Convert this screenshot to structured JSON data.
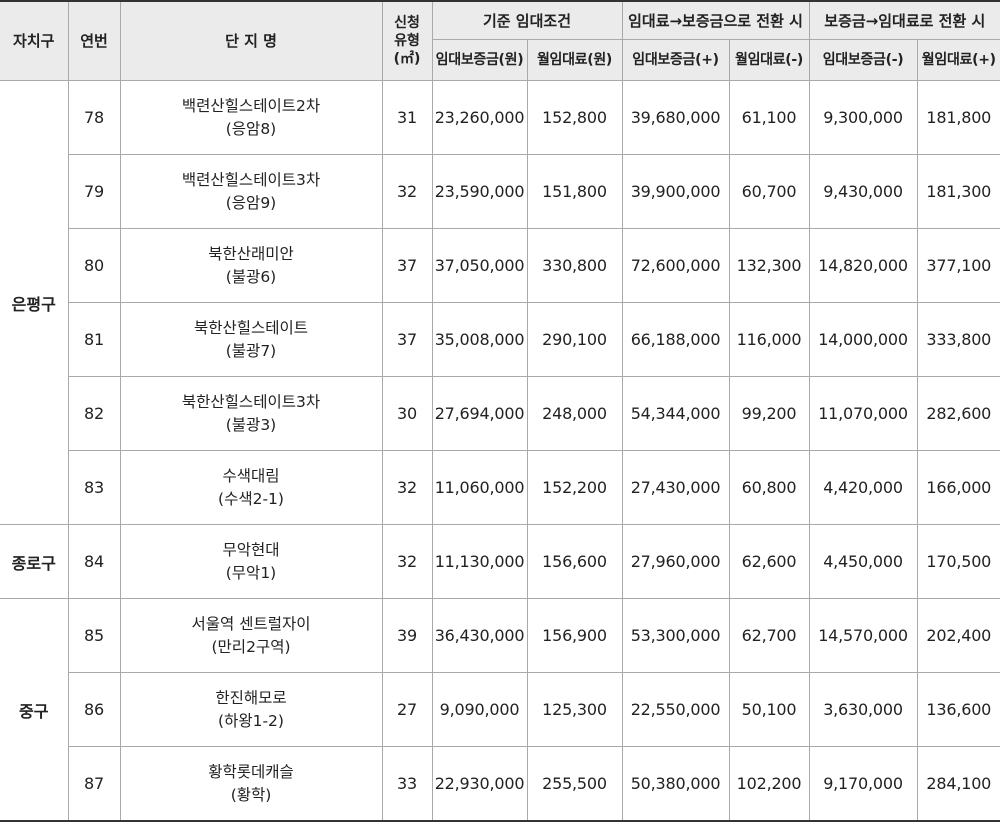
{
  "header": {
    "district": "자치구",
    "serial": "연번",
    "complex_name": "단 지 명",
    "apply_type": [
      "신청",
      "유형",
      "(㎡)"
    ],
    "base_group": "기준 임대조건",
    "to_deposit_group": "임대료→보증금으로 전환 시",
    "to_rent_group": "보증금→임대료로 전환 시",
    "base_deposit": "임대보증금(원)",
    "base_rent": "월임대료(원)",
    "conv1_deposit": "임대보증금(+)",
    "conv1_rent": "월임대료(-)",
    "conv2_deposit": "임대보증금(-)",
    "conv2_rent": "월임대료(+)"
  },
  "districts": [
    "은평구",
    "종로구",
    "중구"
  ],
  "rows": [
    {
      "no": "78",
      "name": "백련산힐스테이트2차",
      "area": "(응암8)",
      "type": "31",
      "deposit": "23,260,000",
      "rent": "152,800",
      "c1_deposit": "39,680,000",
      "c1_rent": "61,100",
      "c2_deposit": "9,300,000",
      "c2_rent": "181,800"
    },
    {
      "no": "79",
      "name": "백련산힐스테이트3차",
      "area": "(응암9)",
      "type": "32",
      "deposit": "23,590,000",
      "rent": "151,800",
      "c1_deposit": "39,900,000",
      "c1_rent": "60,700",
      "c2_deposit": "9,430,000",
      "c2_rent": "181,300"
    },
    {
      "no": "80",
      "name": "북한산래미안",
      "area": "(불광6)",
      "type": "37",
      "deposit": "37,050,000",
      "rent": "330,800",
      "c1_deposit": "72,600,000",
      "c1_rent": "132,300",
      "c2_deposit": "14,820,000",
      "c2_rent": "377,100"
    },
    {
      "no": "81",
      "name": "북한산힐스테이트",
      "area": "(불광7)",
      "type": "37",
      "deposit": "35,008,000",
      "rent": "290,100",
      "c1_deposit": "66,188,000",
      "c1_rent": "116,000",
      "c2_deposit": "14,000,000",
      "c2_rent": "333,800"
    },
    {
      "no": "82",
      "name": "북한산힐스테이트3차",
      "area": "(불광3)",
      "type": "30",
      "deposit": "27,694,000",
      "rent": "248,000",
      "c1_deposit": "54,344,000",
      "c1_rent": "99,200",
      "c2_deposit": "11,070,000",
      "c2_rent": "282,600"
    },
    {
      "no": "83",
      "name": "수색대림",
      "area": "(수색2-1)",
      "type": "32",
      "deposit": "11,060,000",
      "rent": "152,200",
      "c1_deposit": "27,430,000",
      "c1_rent": "60,800",
      "c2_deposit": "4,420,000",
      "c2_rent": "166,000"
    },
    {
      "no": "84",
      "name": "무악현대",
      "area": "(무악1)",
      "type": "32",
      "deposit": "11,130,000",
      "rent": "156,600",
      "c1_deposit": "27,960,000",
      "c1_rent": "62,600",
      "c2_deposit": "4,450,000",
      "c2_rent": "170,500"
    },
    {
      "no": "85",
      "name": "서울역 센트럴자이",
      "area": "(만리2구역)",
      "type": "39",
      "deposit": "36,430,000",
      "rent": "156,900",
      "c1_deposit": "53,300,000",
      "c1_rent": "62,700",
      "c2_deposit": "14,570,000",
      "c2_rent": "202,400"
    },
    {
      "no": "86",
      "name": "한진해모로",
      "area": "(하왕1-2)",
      "type": "27",
      "deposit": "9,090,000",
      "rent": "125,300",
      "c1_deposit": "22,550,000",
      "c1_rent": "50,100",
      "c2_deposit": "3,630,000",
      "c2_rent": "136,600"
    },
    {
      "no": "87",
      "name": "황학롯데캐슬",
      "area": "(황학)",
      "type": "33",
      "deposit": "22,930,000",
      "rent": "255,500",
      "c1_deposit": "50,380,000",
      "c1_rent": "102,200",
      "c2_deposit": "9,170,000",
      "c2_rent": "284,100"
    }
  ]
}
